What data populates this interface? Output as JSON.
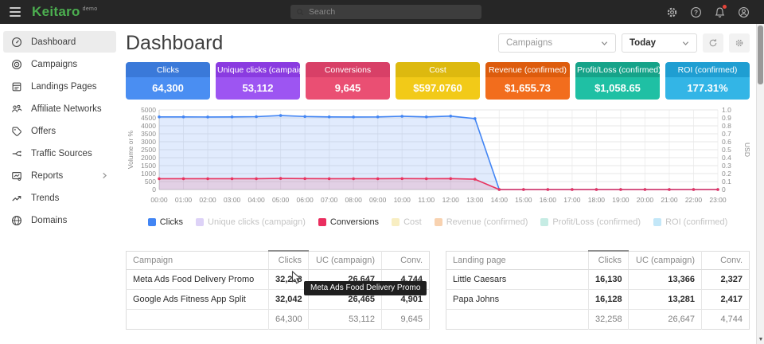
{
  "topbar": {
    "brand": "Keitaro",
    "brand_badge": "demo",
    "brand_color": "#4caf50",
    "search_placeholder": "Search",
    "icons": [
      "settings-icon",
      "help-icon",
      "notifications-bell-icon",
      "account-icon"
    ]
  },
  "sidebar": {
    "items": [
      {
        "label": "Dashboard",
        "icon": "gauge-icon",
        "active": true,
        "chevron": false
      },
      {
        "label": "Campaigns",
        "icon": "target-icon",
        "active": false,
        "chevron": false
      },
      {
        "label": "Landings Pages",
        "icon": "document-icon",
        "active": false,
        "chevron": false
      },
      {
        "label": "Affiliate Networks",
        "icon": "people-icon",
        "active": false,
        "chevron": false
      },
      {
        "label": "Offers",
        "icon": "tag-icon",
        "active": false,
        "chevron": false
      },
      {
        "label": "Traffic Sources",
        "icon": "branch-icon",
        "active": false,
        "chevron": false
      },
      {
        "label": "Reports",
        "icon": "report-icon",
        "active": false,
        "chevron": true
      },
      {
        "label": "Trends",
        "icon": "trend-icon",
        "active": false,
        "chevron": false
      },
      {
        "label": "Domains",
        "icon": "globe-icon",
        "active": false,
        "chevron": false
      }
    ]
  },
  "header": {
    "title": "Dashboard",
    "campaigns_filter": "Campaigns",
    "date_filter": "Today"
  },
  "cards": [
    {
      "label": "Clicks",
      "value": "64,300",
      "header_color": "#3a79d9",
      "body_color": "#4a8ef2"
    },
    {
      "label": "Unique clicks (campaign)",
      "value": "53,112",
      "header_color": "#8a3be0",
      "body_color": "#9d55f2"
    },
    {
      "label": "Conversions",
      "value": "9,645",
      "header_color": "#d84067",
      "body_color": "#ea4f73"
    },
    {
      "label": "Cost",
      "value": "$597.0760",
      "header_color": "#ddb90f",
      "body_color": "#f2ca18"
    },
    {
      "label": "Revenue (confirmed)",
      "value": "$1,655.73",
      "header_color": "#dd5c0d",
      "body_color": "#f26d1d"
    },
    {
      "label": "Profit/Loss (confirmed)",
      "value": "$1,058.65",
      "header_color": "#16a389",
      "body_color": "#1fc0a4"
    },
    {
      "label": "ROI (confirmed)",
      "value": "177.31%",
      "header_color": "#1f9ed2",
      "body_color": "#33b5e6"
    }
  ],
  "chart_data": {
    "type": "line",
    "x": [
      "00:00",
      "01:00",
      "02:00",
      "03:00",
      "04:00",
      "05:00",
      "06:00",
      "07:00",
      "08:00",
      "09:00",
      "10:00",
      "11:00",
      "12:00",
      "13:00",
      "14:00",
      "15:00",
      "16:00",
      "17:00",
      "18:00",
      "19:00",
      "20:00",
      "21:00",
      "22:00",
      "23:00"
    ],
    "series": [
      {
        "name": "Clicks",
        "color": "#4285f4",
        "fill": "rgba(66,133,244,0.16)",
        "values": [
          4560,
          4560,
          4555,
          4560,
          4575,
          4645,
          4585,
          4560,
          4555,
          4560,
          4600,
          4560,
          4610,
          4455,
          0,
          0,
          0,
          0,
          0,
          0,
          0,
          0,
          0,
          0
        ]
      },
      {
        "name": "Conversions",
        "color": "#e8335f",
        "fill": "rgba(232,51,95,0.15)",
        "values": [
          680,
          680,
          680,
          680,
          680,
          695,
          685,
          680,
          680,
          680,
          685,
          680,
          685,
          645,
          0,
          0,
          0,
          0,
          0,
          0,
          0,
          0,
          0,
          0
        ]
      }
    ],
    "ylabel_left": "Volume or %",
    "ylabel_right": "USD",
    "ylim_left": [
      0,
      5000
    ],
    "ytick_step_left": 500,
    "ylim_right": [
      0,
      1.0
    ],
    "ytick_step_right": 0.1,
    "grid": true,
    "legend_position": "bottom"
  },
  "legend": [
    {
      "label": "Clicks",
      "color": "#4285f4",
      "active": true
    },
    {
      "label": "Unique clicks (campaign)",
      "color": "#ddd2f7",
      "active": false
    },
    {
      "label": "Conversions",
      "color": "#ea2e5f",
      "active": true
    },
    {
      "label": "Cost",
      "color": "#f8eec2",
      "active": false
    },
    {
      "label": "Revenue (confirmed)",
      "color": "#f8d2b0",
      "active": false
    },
    {
      "label": "Profit/Loss (confirmed)",
      "color": "#c6ece4",
      "active": false
    },
    {
      "label": "ROI (confirmed)",
      "color": "#c3e7f8",
      "active": false
    }
  ],
  "tables": [
    {
      "name": "campaigns-table",
      "columns": [
        "Campaign",
        "Clicks",
        "UC (campaign)",
        "Conv."
      ],
      "sorted_column": "Clicks",
      "rows": [
        [
          "Meta Ads Food Delivery Promo",
          "32,258",
          "26,647",
          "4,744"
        ],
        [
          "Google Ads Fitness App Split",
          "32,042",
          "26,465",
          "4,901"
        ]
      ],
      "totals": [
        "",
        "64,300",
        "53,112",
        "9,645"
      ]
    },
    {
      "name": "landing-pages-table",
      "columns": [
        "Landing page",
        "Clicks",
        "UC (campaign)",
        "Conv."
      ],
      "sorted_column": "Clicks",
      "rows": [
        [
          "Little Caesars",
          "16,130",
          "13,366",
          "2,327"
        ],
        [
          "Papa Johns",
          "16,128",
          "13,281",
          "2,417"
        ]
      ],
      "totals": [
        "",
        "32,258",
        "26,647",
        "4,744"
      ]
    }
  ],
  "tooltip": {
    "text": "Meta Ads Food Delivery Promo"
  }
}
